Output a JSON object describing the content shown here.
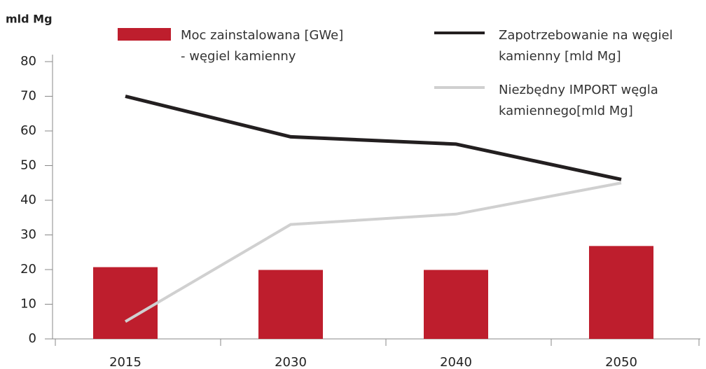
{
  "chart_data": {
    "type": "bar_line",
    "y_axis_label": "mld Mg",
    "categories": [
      "2015",
      "2030",
      "2040",
      "2050"
    ],
    "series": [
      {
        "name": "Moc zainstalowana [GWe]\n- węgiel kamienny",
        "type": "bar",
        "color": "#be1e2d",
        "values": [
          20.7,
          19.9,
          19.9,
          26.8
        ]
      },
      {
        "name": "Zapotrzebowanie na węgiel\nkamienny [mld Mg]",
        "type": "line",
        "color": "#231f20",
        "values": [
          70,
          58.3,
          56.2,
          46
        ]
      },
      {
        "name": "Niezbędny IMPORT węgla\nkamiennego[mld Mg]",
        "type": "line",
        "color": "#d0d0d0",
        "values": [
          5,
          33,
          36,
          45
        ]
      }
    ],
    "ylim": [
      0,
      80
    ],
    "yticks": [
      0,
      10,
      20,
      30,
      40,
      50,
      60,
      70,
      80
    ]
  }
}
